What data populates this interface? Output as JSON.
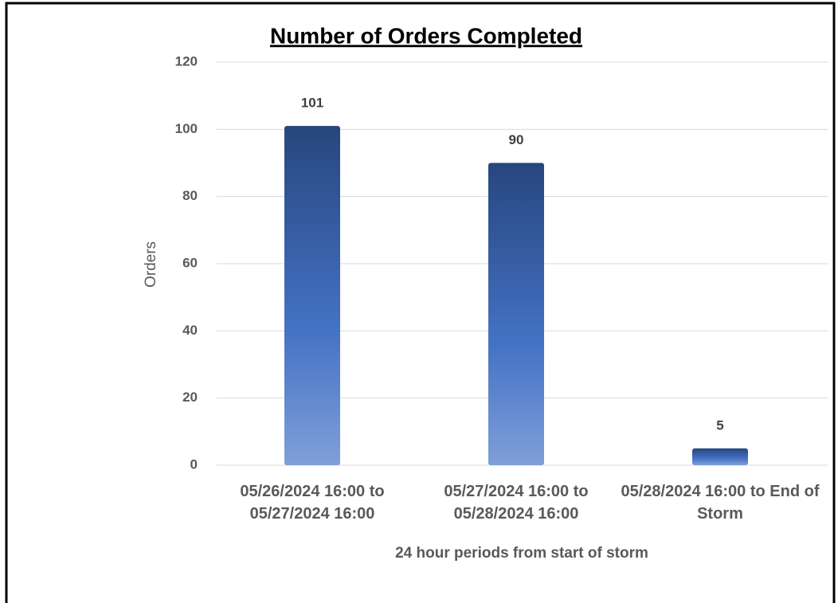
{
  "chart_data": {
    "type": "bar",
    "title": "Number of Orders Completed",
    "x_label": "24 hour periods from start of storm",
    "y_label": "Orders",
    "categories": [
      "05/26/2024 16:00 to 05/27/2024 16:00",
      "05/27/2024 16:00 to 05/28/2024 16:00",
      "05/28/2024 16:00 to End of Storm"
    ],
    "values": [
      101,
      90,
      5
    ],
    "color": [
      "#27467e",
      "#7f9fd9"
    ],
    "ylim": [
      0,
      120
    ],
    "yticks": [
      0,
      20,
      40,
      60,
      80,
      100,
      120
    ],
    "grid": true
  }
}
